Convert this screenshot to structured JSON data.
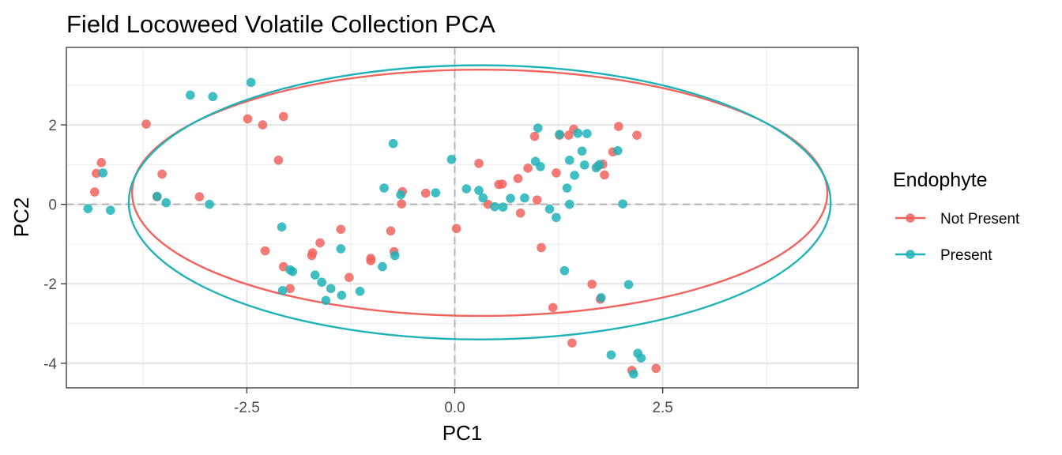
{
  "chart_data": {
    "type": "scatter",
    "title": "Field Locoweed Volatile Collection PCA",
    "xlabel": "PC1",
    "ylabel": "PC2",
    "xlim": [
      -4.67,
      4.85
    ],
    "ylim": [
      -4.62,
      3.95
    ],
    "x_ticks": [
      -2.5,
      0.0,
      2.5
    ],
    "x_tick_labels": [
      "-2.5",
      "0.0",
      "2.5"
    ],
    "y_ticks": [
      -4,
      -2,
      0,
      2
    ],
    "y_tick_labels": [
      "-4",
      "-2",
      "0",
      "2"
    ],
    "grid": true,
    "reference_lines": {
      "x": 0,
      "y": 0
    },
    "legend": {
      "title": "Endophyte",
      "position": "right",
      "entries": [
        "Not Present",
        "Present"
      ]
    },
    "colors": {
      "Not Present": "#F0645E",
      "Present": "#1FB3B8"
    },
    "series": [
      {
        "name": "Not Present",
        "color": "#F0645E",
        "points": [
          [
            -4.25,
            1.05
          ],
          [
            -4.31,
            0.78
          ],
          [
            -4.33,
            0.31
          ],
          [
            -3.71,
            2.02
          ],
          [
            -3.52,
            0.76
          ],
          [
            -3.58,
            0.19
          ],
          [
            -3.07,
            0.19
          ],
          [
            -2.49,
            2.15
          ],
          [
            -2.31,
            2.0
          ],
          [
            -2.06,
            2.21
          ],
          [
            -2.12,
            1.11
          ],
          [
            -2.28,
            -1.17
          ],
          [
            -2.06,
            -1.57
          ],
          [
            -1.98,
            -2.12
          ],
          [
            -1.72,
            -1.29
          ],
          [
            -1.71,
            -1.22
          ],
          [
            -1.62,
            -0.97
          ],
          [
            -1.37,
            -0.63
          ],
          [
            -1.27,
            -1.84
          ],
          [
            -1.01,
            -1.42
          ],
          [
            -1.01,
            -1.36
          ],
          [
            -0.77,
            -0.67
          ],
          [
            -0.73,
            -1.19
          ],
          [
            -0.63,
            0.32
          ],
          [
            -0.64,
            0.01
          ],
          [
            -0.35,
            0.28
          ],
          [
            0.02,
            -0.61
          ],
          [
            0.29,
            1.03
          ],
          [
            0.4,
            0.0
          ],
          [
            0.53,
            0.5
          ],
          [
            0.57,
            0.51
          ],
          [
            0.76,
            0.65
          ],
          [
            0.79,
            -0.22
          ],
          [
            0.88,
            0.91
          ],
          [
            0.99,
            0.11
          ],
          [
            0.96,
            1.71
          ],
          [
            1.04,
            -1.09
          ],
          [
            1.22,
            0.79
          ],
          [
            1.26,
            1.74
          ],
          [
            1.37,
            1.74
          ],
          [
            1.43,
            1.89
          ],
          [
            1.41,
            -3.49
          ],
          [
            1.18,
            -2.6
          ],
          [
            1.65,
            -2.01
          ],
          [
            1.72,
            0.96
          ],
          [
            1.75,
            -2.39
          ],
          [
            1.78,
            1.01
          ],
          [
            1.8,
            0.74
          ],
          [
            1.9,
            1.32
          ],
          [
            1.97,
            1.96
          ],
          [
            2.19,
            1.74
          ],
          [
            2.13,
            -4.18
          ],
          [
            2.42,
            -4.13
          ]
        ]
      },
      {
        "name": "Present",
        "color": "#1FB3B8",
        "points": [
          [
            -4.41,
            -0.11
          ],
          [
            -4.23,
            0.79
          ],
          [
            -4.14,
            -0.15
          ],
          [
            -3.58,
            0.2
          ],
          [
            -3.47,
            0.04
          ],
          [
            -3.18,
            2.75
          ],
          [
            -2.91,
            2.71
          ],
          [
            -2.95,
            0.0
          ],
          [
            -2.45,
            3.07
          ],
          [
            -2.08,
            -0.57
          ],
          [
            -2.07,
            -2.17
          ],
          [
            -1.98,
            -1.65
          ],
          [
            -1.95,
            -1.69
          ],
          [
            -1.68,
            -1.78
          ],
          [
            -1.6,
            -1.96
          ],
          [
            -1.55,
            -2.42
          ],
          [
            -1.49,
            -2.12
          ],
          [
            -1.36,
            -2.29
          ],
          [
            -1.37,
            -1.12
          ],
          [
            -1.14,
            -2.19
          ],
          [
            -0.85,
            0.41
          ],
          [
            -0.87,
            -1.57
          ],
          [
            -0.74,
            1.53
          ],
          [
            -0.72,
            -1.29
          ],
          [
            -0.65,
            0.24
          ],
          [
            -0.23,
            0.29
          ],
          [
            -0.04,
            1.13
          ],
          [
            0.14,
            0.39
          ],
          [
            0.29,
            0.35
          ],
          [
            0.34,
            0.16
          ],
          [
            0.48,
            -0.06
          ],
          [
            0.58,
            -0.07
          ],
          [
            0.67,
            0.15
          ],
          [
            0.84,
            0.16
          ],
          [
            0.97,
            1.08
          ],
          [
            1.0,
            1.92
          ],
          [
            1.03,
            0.95
          ],
          [
            1.14,
            -0.12
          ],
          [
            1.22,
            -0.33
          ],
          [
            1.26,
            1.76
          ],
          [
            1.32,
            -1.67
          ],
          [
            1.35,
            0.41
          ],
          [
            1.38,
            0.0
          ],
          [
            1.38,
            1.11
          ],
          [
            1.44,
            0.73
          ],
          [
            1.48,
            1.79
          ],
          [
            1.53,
            1.34
          ],
          [
            1.56,
            0.99
          ],
          [
            1.59,
            1.78
          ],
          [
            1.7,
            0.92
          ],
          [
            1.74,
            1.0
          ],
          [
            1.76,
            -2.35
          ],
          [
            1.88,
            -3.79
          ],
          [
            1.96,
            1.35
          ],
          [
            2.02,
            0.01
          ],
          [
            2.09,
            -2.02
          ],
          [
            2.2,
            -3.75
          ],
          [
            2.24,
            -3.87
          ],
          [
            2.15,
            -4.27
          ]
        ]
      }
    ],
    "ellipses": [
      {
        "series": "Not Present",
        "color": "#F0645E",
        "cx": 0.3,
        "cy": 0.29,
        "rx": 4.18,
        "ry": 3.1
      },
      {
        "series": "Present",
        "color": "#1FB3B8",
        "cx": 0.3,
        "cy": 0.05,
        "rx": 4.22,
        "ry": 3.45
      }
    ]
  }
}
